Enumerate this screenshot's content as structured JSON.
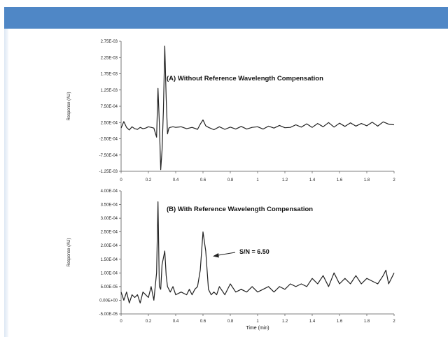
{
  "chart_data": [
    {
      "type": "line",
      "title": "(A) Without Reference Wavelength Compensation",
      "xlabel": "",
      "ylabel": "Response (AU)",
      "xlim": [
        0,
        2
      ],
      "ylim": [
        -0.00125,
        0.00275
      ],
      "x_ticks": [
        "0",
        "0.2",
        "0.4",
        "0.6",
        "0.8",
        "1",
        "1.2",
        "1.4",
        "1.6",
        "1.8",
        "2"
      ],
      "y_ticks": [
        "2.75E-03",
        "2.25E-03",
        "1.75E-03",
        "1.25E-03",
        "7.50E-04",
        "2.50E-04",
        "-2.50E-04",
        "-7.50E-04",
        "-1.25E-03"
      ],
      "grid": false,
      "series": [
        {
          "x": [
            0,
            0.02,
            0.04,
            0.06,
            0.08,
            0.1,
            0.12,
            0.14,
            0.16,
            0.18,
            0.2,
            0.22,
            0.24,
            0.26,
            0.27,
            0.28,
            0.29,
            0.3,
            0.31,
            0.32,
            0.33,
            0.34,
            0.35,
            0.36,
            0.38,
            0.4,
            0.44,
            0.48,
            0.52,
            0.56,
            0.58,
            0.6,
            0.62,
            0.64,
            0.68,
            0.72,
            0.76,
            0.8,
            0.84,
            0.88,
            0.92,
            0.96,
            1.0,
            1.04,
            1.08,
            1.12,
            1.16,
            1.2,
            1.24,
            1.28,
            1.32,
            1.36,
            1.4,
            1.44,
            1.48,
            1.52,
            1.56,
            1.6,
            1.64,
            1.68,
            1.72,
            1.76,
            1.8,
            1.84,
            1.88,
            1.92,
            1.96,
            2.0
          ],
          "values": [
            8e-05,
            0.00028,
            0.0001,
            2e-05,
            0.00012,
            6e-05,
            4e-05,
            0.0001,
            6e-05,
            8e-05,
            0.00012,
            0.0001,
            8e-05,
            -0.0002,
            0.0013,
            0.00025,
            -0.0012,
            -0.0006,
            0.0006,
            0.0026,
            0.001,
            -0.0001,
            8e-05,
            0.0001,
            0.00012,
            0.0001,
            0.00012,
            6e-05,
            0.0001,
            4e-05,
            0.0002,
            0.00033,
            0.00015,
            0.0001,
            3e-05,
            0.00012,
            4e-05,
            0.00011,
            5e-05,
            0.00013,
            5e-05,
            0.0001,
            0.00012,
            5e-05,
            0.00014,
            8e-05,
            0.00016,
            9e-05,
            0.0001,
            0.00018,
            0.00011,
            0.00021,
            0.0001,
            0.00022,
            0.00012,
            0.00025,
            0.00011,
            0.00023,
            0.00013,
            0.00024,
            0.00014,
            0.00022,
            0.00015,
            0.00026,
            0.00014,
            0.00027,
            0.0002,
            0.00018
          ]
        }
      ]
    },
    {
      "type": "line",
      "title": "(B) With Reference Wavelength Compensation",
      "xlabel": "Time (min)",
      "ylabel": "Response (AU)",
      "xlim": [
        0,
        2
      ],
      "ylim": [
        -5e-05,
        0.0004
      ],
      "x_ticks": [
        "0",
        "0.2",
        "0.4",
        "0.6",
        "0.8",
        "1",
        "1.2",
        "1.4",
        "1.6",
        "1.8",
        "2"
      ],
      "y_ticks": [
        "4.00E-04",
        "3.50E-04",
        "3.00E-04",
        "2.50E-04",
        "2.00E-04",
        "1.50E-04",
        "1.00E-04",
        "5.00E-05",
        "0.00E+00",
        "-5.00E-05"
      ],
      "grid": false,
      "annotation": "S/N = 6.50",
      "series": [
        {
          "x": [
            0,
            0.02,
            0.04,
            0.06,
            0.08,
            0.1,
            0.12,
            0.14,
            0.16,
            0.18,
            0.2,
            0.22,
            0.24,
            0.26,
            0.27,
            0.28,
            0.29,
            0.3,
            0.32,
            0.33,
            0.34,
            0.36,
            0.38,
            0.4,
            0.44,
            0.48,
            0.5,
            0.52,
            0.54,
            0.56,
            0.58,
            0.6,
            0.62,
            0.64,
            0.66,
            0.68,
            0.7,
            0.72,
            0.76,
            0.8,
            0.84,
            0.88,
            0.92,
            0.96,
            1.0,
            1.04,
            1.08,
            1.12,
            1.16,
            1.2,
            1.24,
            1.28,
            1.32,
            1.36,
            1.4,
            1.44,
            1.48,
            1.52,
            1.56,
            1.6,
            1.64,
            1.68,
            1.72,
            1.76,
            1.8,
            1.84,
            1.88,
            1.92,
            1.94,
            1.96,
            1.98,
            2.0
          ],
          "values": [
            3e-05,
            0.0,
            3e-05,
            -1e-05,
            2e-05,
            1e-05,
            2e-05,
            -1e-05,
            3e-05,
            2e-05,
            1e-05,
            5e-05,
            0.0,
            0.0001,
            0.00036,
            5e-05,
            4e-05,
            0.00013,
            0.00018,
            9e-05,
            5e-05,
            3e-05,
            5e-05,
            2e-05,
            3e-05,
            2e-05,
            4e-05,
            2e-05,
            4e-05,
            5e-05,
            0.00011,
            0.00025,
            0.00018,
            4e-05,
            2e-05,
            3e-05,
            2e-05,
            5e-05,
            2e-05,
            6e-05,
            3e-05,
            4e-05,
            3e-05,
            5e-05,
            3e-05,
            4e-05,
            5e-05,
            3e-05,
            5e-05,
            4e-05,
            6e-05,
            5e-05,
            6e-05,
            5e-05,
            8e-05,
            6e-05,
            9e-05,
            5e-05,
            0.0001,
            6e-05,
            8e-05,
            6e-05,
            9e-05,
            6e-05,
            8e-05,
            7e-05,
            6e-05,
            9e-05,
            0.00011,
            6e-05,
            8e-05,
            0.0001
          ]
        }
      ]
    }
  ]
}
